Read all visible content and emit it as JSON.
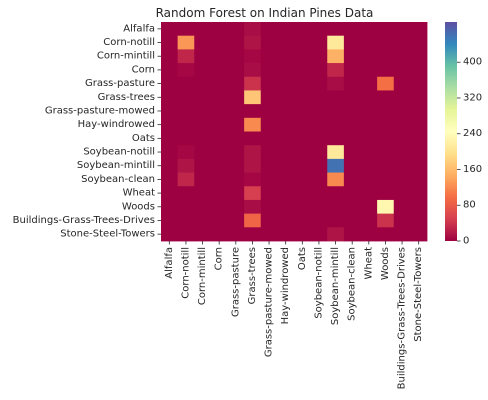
{
  "chart_data": {
    "type": "heatmap",
    "title": "Random Forest on Indian Pines Data",
    "xlabel": "",
    "ylabel": "",
    "row_labels": [
      "Alfalfa",
      "Corn-notill",
      "Corn-mintill",
      "Corn",
      "Grass-pasture",
      "Grass-trees",
      "Grass-pasture-mowed",
      "Hay-windrowed",
      "Oats",
      "Soybean-notill",
      "Soybean-mintill",
      "Soybean-clean",
      "Wheat",
      "Woods",
      "Buildings-Grass-Trees-Drives",
      "Stone-Steel-Towers"
    ],
    "col_labels": [
      "Alfalfa",
      "Corn-notill",
      "Corn-mintill",
      "Corn",
      "Grass-pasture",
      "Grass-trees",
      "Grass-pasture-mowed",
      "Hay-windrowed",
      "Oats",
      "Soybean-notill",
      "Soybean-mintill",
      "Soybean-clean",
      "Wheat",
      "Woods",
      "Buildings-Grass-Trees-Drives",
      "Stone-Steel-Towers"
    ],
    "values": [
      [
        0,
        0,
        0,
        0,
        0,
        10,
        0,
        0,
        0,
        0,
        0,
        0,
        0,
        0,
        0,
        0
      ],
      [
        0,
        130,
        0,
        0,
        0,
        15,
        0,
        0,
        0,
        0,
        210,
        0,
        0,
        0,
        0,
        0
      ],
      [
        0,
        30,
        0,
        0,
        0,
        5,
        0,
        0,
        0,
        0,
        150,
        0,
        0,
        0,
        0,
        0
      ],
      [
        0,
        5,
        0,
        0,
        0,
        10,
        0,
        0,
        0,
        0,
        30,
        0,
        0,
        0,
        0,
        0
      ],
      [
        0,
        0,
        0,
        0,
        0,
        40,
        0,
        0,
        0,
        0,
        10,
        0,
        0,
        100,
        0,
        0
      ],
      [
        0,
        0,
        0,
        0,
        0,
        170,
        0,
        0,
        0,
        0,
        0,
        0,
        0,
        0,
        0,
        0
      ],
      [
        0,
        0,
        0,
        0,
        0,
        0,
        0,
        0,
        0,
        0,
        0,
        0,
        0,
        0,
        0,
        0
      ],
      [
        0,
        0,
        0,
        0,
        0,
        120,
        0,
        0,
        0,
        0,
        0,
        0,
        0,
        0,
        0,
        0
      ],
      [
        0,
        0,
        0,
        0,
        0,
        0,
        0,
        0,
        0,
        0,
        0,
        0,
        0,
        0,
        0,
        0
      ],
      [
        0,
        5,
        0,
        0,
        0,
        15,
        0,
        0,
        0,
        0,
        210,
        0,
        0,
        0,
        0,
        0
      ],
      [
        0,
        15,
        0,
        0,
        0,
        15,
        0,
        0,
        0,
        0,
        460,
        0,
        0,
        0,
        0,
        0
      ],
      [
        0,
        30,
        0,
        0,
        0,
        5,
        0,
        0,
        0,
        0,
        120,
        0,
        0,
        0,
        0,
        0
      ],
      [
        0,
        0,
        0,
        0,
        0,
        50,
        0,
        0,
        0,
        0,
        0,
        0,
        0,
        0,
        0,
        0
      ],
      [
        0,
        0,
        0,
        0,
        0,
        10,
        0,
        0,
        0,
        0,
        0,
        0,
        0,
        230,
        0,
        0
      ],
      [
        0,
        0,
        0,
        0,
        0,
        90,
        0,
        0,
        0,
        0,
        0,
        0,
        0,
        40,
        0,
        0
      ],
      [
        0,
        0,
        0,
        0,
        0,
        0,
        0,
        0,
        0,
        0,
        15,
        0,
        0,
        0,
        0,
        0
      ]
    ],
    "colormap": "Spectral",
    "vmin": 0,
    "vmax": 490,
    "colorbar_ticks": [
      "0",
      "80",
      "160",
      "240",
      "320",
      "400"
    ],
    "grid": false,
    "legend": "colorbar-right"
  }
}
